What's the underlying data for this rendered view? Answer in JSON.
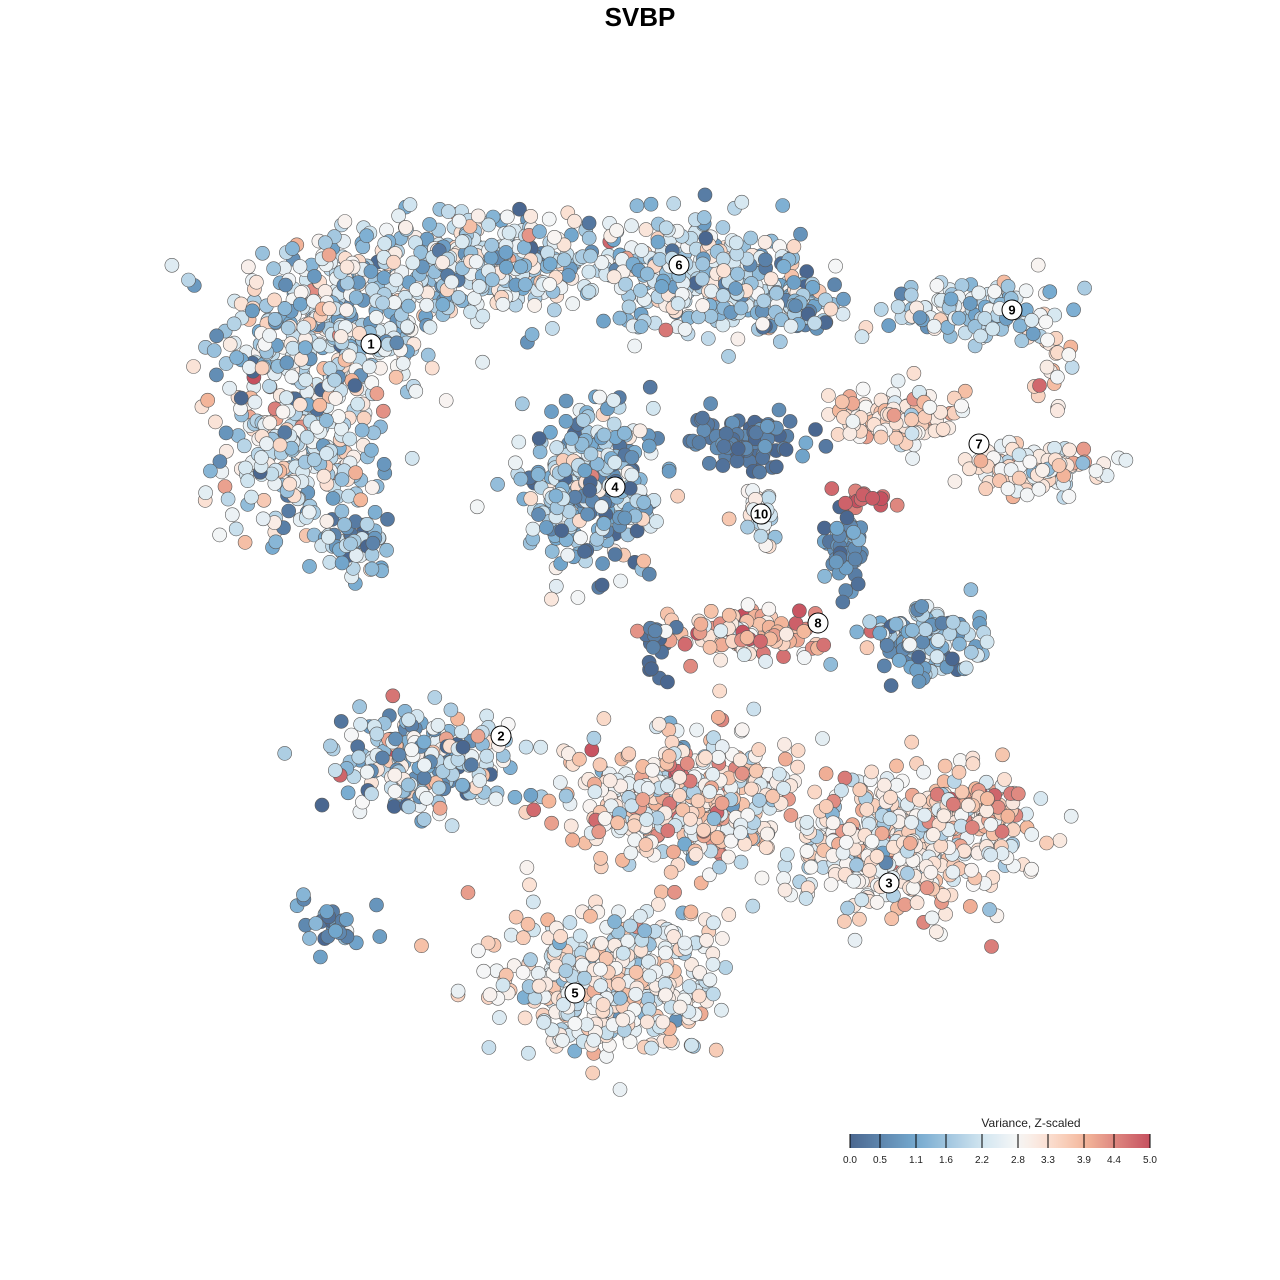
{
  "chart_data": {
    "type": "scatter",
    "title": "SVBP",
    "xlabel": "",
    "ylabel": "",
    "xlim": [
      -22,
      25
    ],
    "ylim": [
      -23,
      23
    ],
    "grid": false,
    "point_generation": "clusters of points sampled around each center with given spread (embedding units); color = variance value",
    "clusters": [
      {
        "id": "1",
        "center": [
          -15.5,
          15.5
        ],
        "spread": [
          5,
          4
        ],
        "n": 350,
        "mean": 2.2,
        "sd": 0.9
      },
      {
        "id": "1",
        "center": [
          -17,
          9.5
        ],
        "spread": [
          3.5,
          4
        ],
        "n": 260,
        "mean": 2.3,
        "sd": 0.9
      },
      {
        "id": "1",
        "center": [
          -14.5,
          4.8
        ],
        "spread": [
          2,
          1.3
        ],
        "n": 60,
        "mean": 1.4,
        "sd": 0.8
      },
      {
        "id": "6",
        "center": [
          -8,
          18.8
        ],
        "spread": [
          6,
          2.4
        ],
        "n": 360,
        "mean": 2.2,
        "sd": 0.8
      },
      {
        "id": "6",
        "center": [
          3,
          18.3
        ],
        "spread": [
          5,
          2.5
        ],
        "n": 300,
        "mean": 2.0,
        "sd": 0.9
      },
      {
        "id": "6",
        "center": [
          8,
          16.8
        ],
        "spread": [
          2,
          1.4
        ],
        "n": 80,
        "mean": 1.4,
        "sd": 0.8
      },
      {
        "id": "9",
        "center": [
          17,
          16.5
        ],
        "spread": [
          4,
          1.4
        ],
        "n": 120,
        "mean": 2.0,
        "sd": 0.7
      },
      {
        "id": "9",
        "center": [
          20.7,
          14
        ],
        "spread": [
          0.7,
          2
        ],
        "n": 20,
        "mean": 3.3,
        "sd": 0.4
      },
      {
        "id": "7",
        "center": [
          13,
          11
        ],
        "spread": [
          3,
          1.4
        ],
        "n": 110,
        "mean": 3.2,
        "sd": 0.5
      },
      {
        "id": "7",
        "center": [
          20,
          8.5
        ],
        "spread": [
          3.5,
          1.2
        ],
        "n": 110,
        "mean": 2.9,
        "sd": 0.6
      },
      {
        "id": "4",
        "center": [
          -2.5,
          7.5
        ],
        "spread": [
          3,
          3.3
        ],
        "n": 320,
        "mean": 1.5,
        "sd": 1.0
      },
      {
        "id": "4",
        "center": [
          5,
          10
        ],
        "spread": [
          3,
          1.1
        ],
        "n": 90,
        "mean": 0.3,
        "sd": 0.3
      },
      {
        "id": "10",
        "center": [
          6,
          6.25
        ],
        "spread": [
          0.8,
          1.2
        ],
        "n": 30,
        "mean": 2.6,
        "sd": 0.4
      },
      {
        "id": "hot",
        "center": [
          11.5,
          7
        ],
        "spread": [
          1.5,
          0.6
        ],
        "n": 16,
        "mean": 4.7,
        "sd": 0.3
      },
      {
        "id": "mid",
        "center": [
          10.3,
          4.5
        ],
        "spread": [
          0.8,
          1.5
        ],
        "n": 50,
        "mean": 0.7,
        "sd": 0.5
      },
      {
        "id": "8",
        "center": [
          5.5,
          0.3
        ],
        "spread": [
          4.2,
          1.1
        ],
        "n": 110,
        "mean": 3.7,
        "sd": 0.7
      },
      {
        "id": "8",
        "center": [
          14.5,
          0
        ],
        "spread": [
          2.5,
          1.5
        ],
        "n": 130,
        "mean": 1.2,
        "sd": 0.8
      },
      {
        "id": "bridge",
        "center": [
          1,
          0
        ],
        "spread": [
          0.8,
          2
        ],
        "n": 20,
        "mean": 0.2,
        "sd": 0.2
      },
      {
        "id": "2",
        "center": [
          -11,
          -6
        ],
        "spread": [
          4,
          2.4
        ],
        "n": 210,
        "mean": 1.8,
        "sd": 1.1
      },
      {
        "id": "3",
        "center": [
          2,
          -8
        ],
        "spread": [
          5,
          3
        ],
        "n": 420,
        "mean": 3.2,
        "sd": 0.8
      },
      {
        "id": "3",
        "center": [
          13,
          -10
        ],
        "spread": [
          5.5,
          3
        ],
        "n": 420,
        "mean": 3.0,
        "sd": 0.7
      },
      {
        "id": "3",
        "center": [
          17,
          -8.5
        ],
        "spread": [
          2,
          1.2
        ],
        "n": 70,
        "mean": 3.9,
        "sd": 0.5
      },
      {
        "id": "5",
        "center": [
          -1.5,
          -17
        ],
        "spread": [
          5,
          3.4
        ],
        "n": 420,
        "mean": 2.7,
        "sd": 0.7
      },
      {
        "id": "small",
        "center": [
          -15,
          -14.3
        ],
        "spread": [
          2,
          1.1
        ],
        "n": 30,
        "mean": 0.8,
        "sd": 0.5
      }
    ],
    "cluster_labels": [
      {
        "text": "1",
        "pos": [
          -13.45,
          14.8
        ]
      },
      {
        "text": "2",
        "pos": [
          -6.95,
          -4.8
        ]
      },
      {
        "text": "3",
        "pos": [
          12.45,
          -12.15
        ]
      },
      {
        "text": "4",
        "pos": [
          -1.25,
          7.65
        ]
      },
      {
        "text": "5",
        "pos": [
          -3.25,
          -17.65
        ]
      },
      {
        "text": "6",
        "pos": [
          1.95,
          18.75
        ]
      },
      {
        "text": "7",
        "pos": [
          16.95,
          9.8
        ]
      },
      {
        "text": "8",
        "pos": [
          8.9,
          0.85
        ]
      },
      {
        "text": "9",
        "pos": [
          18.6,
          16.5
        ]
      },
      {
        "text": "10",
        "pos": [
          6.05,
          6.3
        ]
      }
    ],
    "legend": {
      "title": "Variance, Z-scaled",
      "placement": "bottom-right",
      "range": [
        0,
        5
      ],
      "ticks": [
        "0.0",
        "0.5",
        "1.1",
        "1.6",
        "2.2",
        "2.8",
        "3.3",
        "3.9",
        "4.4",
        "5.0"
      ],
      "tick_values": [
        0,
        0.5,
        1.1,
        1.6,
        2.2,
        2.8,
        3.3,
        3.9,
        4.4,
        5.0
      ]
    },
    "color_stops": [
      {
        "v": 0,
        "c": "#4a6790"
      },
      {
        "v": 1.1,
        "c": "#74a9cf"
      },
      {
        "v": 2.2,
        "c": "#d1e5f0"
      },
      {
        "v": 2.8,
        "c": "#f7f7f7"
      },
      {
        "v": 3.3,
        "c": "#fbe0d2"
      },
      {
        "v": 3.9,
        "c": "#f4b89c"
      },
      {
        "v": 5.0,
        "c": "#c6505f"
      }
    ]
  }
}
